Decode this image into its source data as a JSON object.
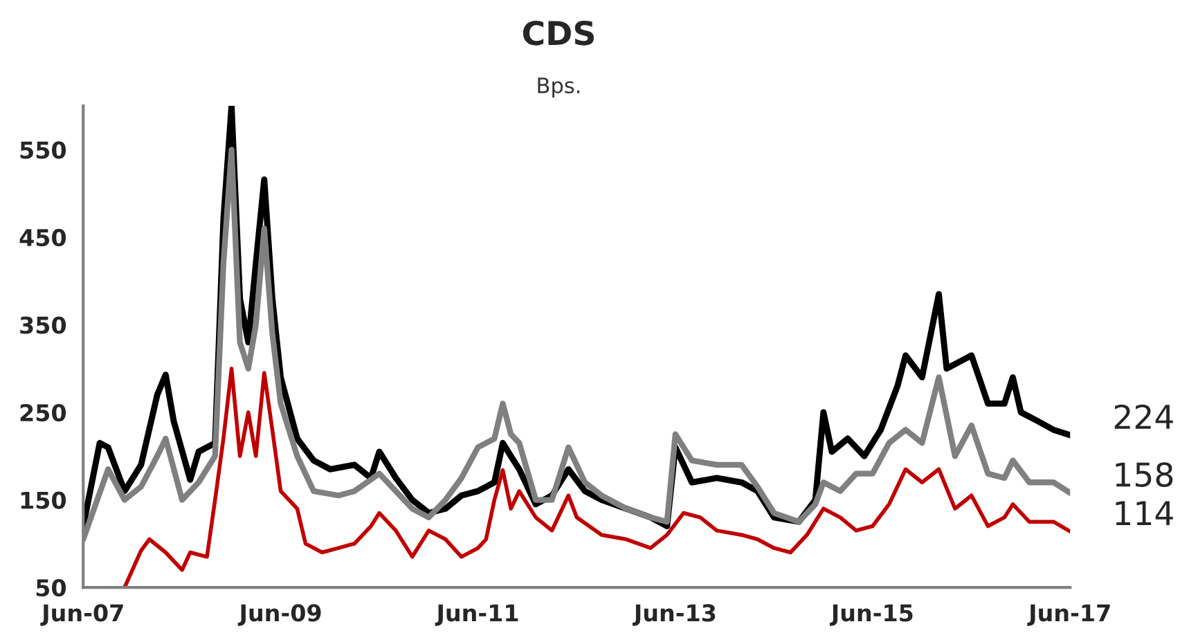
{
  "chart_data": {
    "type": "line",
    "title": "CDS",
    "subtitle": "Bps.",
    "xlim": [
      "2007-06",
      "2017-06"
    ],
    "xticks": [
      {
        "value": "2007-06",
        "label": "Jun-07"
      },
      {
        "value": "2009-06",
        "label": "Jun-09"
      },
      {
        "value": "2011-06",
        "label": "Jun-11"
      },
      {
        "value": "2013-06",
        "label": "Jun-13"
      },
      {
        "value": "2015-06",
        "label": "Jun-15"
      },
      {
        "value": "2017-06",
        "label": "Jun-17"
      }
    ],
    "ylim": [
      50,
      600
    ],
    "yticks": [
      50,
      150,
      250,
      350,
      450,
      550
    ],
    "grid": false,
    "legend": false,
    "marker": "none",
    "line_style": "solid",
    "series": [
      {
        "color": "#000000",
        "x": [
          "2007-06",
          "2007-08",
          "2007-09",
          "2007-11",
          "2008-01",
          "2008-03",
          "2008-04",
          "2008-05",
          "2008-07",
          "2008-08",
          "2008-10",
          "2008-11",
          "2008-12",
          "2009-01",
          "2009-02",
          "2009-03",
          "2009-04",
          "2009-05",
          "2009-06",
          "2009-08",
          "2009-10",
          "2009-12",
          "2010-03",
          "2010-05",
          "2010-06",
          "2010-08",
          "2010-10",
          "2010-12",
          "2011-02",
          "2011-04",
          "2011-06",
          "2011-08",
          "2011-09",
          "2011-10",
          "2011-11",
          "2012-01",
          "2012-03",
          "2012-05",
          "2012-07",
          "2012-09",
          "2012-12",
          "2013-03",
          "2013-05",
          "2013-06",
          "2013-08",
          "2013-11",
          "2014-02",
          "2014-04",
          "2014-06",
          "2014-09",
          "2014-11",
          "2014-12",
          "2015-01",
          "2015-03",
          "2015-05",
          "2015-07",
          "2015-09",
          "2015-10",
          "2015-12",
          "2016-02",
          "2016-03",
          "2016-05",
          "2016-06",
          "2016-08",
          "2016-10",
          "2016-11",
          "2016-12",
          "2017-02",
          "2017-04",
          "2017-06"
        ],
        "values": [
          120,
          215,
          210,
          160,
          190,
          270,
          293,
          240,
          173,
          205,
          215,
          470,
          600,
          380,
          330,
          420,
          516,
          380,
          290,
          220,
          195,
          185,
          190,
          175,
          205,
          175,
          150,
          135,
          140,
          155,
          160,
          170,
          215,
          200,
          185,
          145,
          155,
          185,
          160,
          150,
          140,
          130,
          120,
          210,
          170,
          175,
          170,
          160,
          130,
          125,
          150,
          250,
          205,
          220,
          200,
          230,
          280,
          315,
          290,
          385,
          300,
          310,
          315,
          260,
          260,
          290,
          250,
          240,
          230,
          224
        ]
      },
      {
        "color": "#808080",
        "x": [
          "2007-06",
          "2007-09",
          "2007-11",
          "2008-01",
          "2008-03",
          "2008-04",
          "2008-06",
          "2008-08",
          "2008-10",
          "2008-11",
          "2008-12",
          "2009-01",
          "2009-02",
          "2009-03",
          "2009-04",
          "2009-05",
          "2009-06",
          "2009-08",
          "2009-10",
          "2010-01",
          "2010-03",
          "2010-06",
          "2010-08",
          "2010-10",
          "2010-12",
          "2011-02",
          "2011-04",
          "2011-06",
          "2011-08",
          "2011-09",
          "2011-10",
          "2011-11",
          "2012-01",
          "2012-03",
          "2012-05",
          "2012-07",
          "2012-09",
          "2012-12",
          "2013-03",
          "2013-05",
          "2013-06",
          "2013-08",
          "2013-11",
          "2014-02",
          "2014-04",
          "2014-06",
          "2014-09",
          "2014-11",
          "2014-12",
          "2015-02",
          "2015-04",
          "2015-06",
          "2015-08",
          "2015-10",
          "2015-12",
          "2016-02",
          "2016-04",
          "2016-06",
          "2016-08",
          "2016-10",
          "2016-11",
          "2017-01",
          "2017-04",
          "2017-06"
        ],
        "values": [
          105,
          185,
          150,
          165,
          200,
          220,
          150,
          170,
          200,
          420,
          550,
          330,
          300,
          350,
          460,
          340,
          260,
          200,
          160,
          155,
          160,
          180,
          160,
          140,
          130,
          150,
          175,
          210,
          220,
          260,
          225,
          215,
          150,
          150,
          210,
          170,
          155,
          140,
          130,
          125,
          225,
          195,
          190,
          190,
          165,
          135,
          125,
          145,
          170,
          160,
          180,
          180,
          215,
          230,
          215,
          290,
          200,
          235,
          180,
          175,
          195,
          170,
          170,
          158
        ]
      },
      {
        "color": "#c00000",
        "x": [
          "2007-11",
          "2008-01",
          "2008-02",
          "2008-04",
          "2008-06",
          "2008-07",
          "2008-09",
          "2008-10",
          "2008-11",
          "2008-12",
          "2009-01",
          "2009-02",
          "2009-03",
          "2009-04",
          "2009-05",
          "2009-06",
          "2009-08",
          "2009-09",
          "2009-11",
          "2010-01",
          "2010-03",
          "2010-05",
          "2010-06",
          "2010-08",
          "2010-10",
          "2010-12",
          "2011-02",
          "2011-04",
          "2011-06",
          "2011-07",
          "2011-08",
          "2011-09",
          "2011-10",
          "2011-11",
          "2012-01",
          "2012-03",
          "2012-05",
          "2012-06",
          "2012-09",
          "2012-12",
          "2013-03",
          "2013-05",
          "2013-07",
          "2013-09",
          "2013-11",
          "2014-02",
          "2014-04",
          "2014-06",
          "2014-08",
          "2014-10",
          "2014-12",
          "2015-02",
          "2015-04",
          "2015-06",
          "2015-08",
          "2015-10",
          "2015-12",
          "2016-02",
          "2016-04",
          "2016-06",
          "2016-08",
          "2016-10",
          "2016-11",
          "2017-01",
          "2017-04",
          "2017-06"
        ],
        "values": [
          50,
          92,
          105,
          90,
          70,
          90,
          85,
          150,
          220,
          300,
          200,
          250,
          200,
          295,
          230,
          160,
          140,
          100,
          90,
          95,
          100,
          120,
          135,
          115,
          85,
          115,
          105,
          85,
          95,
          105,
          150,
          184,
          140,
          160,
          130,
          115,
          155,
          130,
          110,
          105,
          95,
          110,
          135,
          130,
          115,
          110,
          105,
          95,
          90,
          110,
          140,
          130,
          115,
          120,
          145,
          185,
          170,
          185,
          140,
          155,
          120,
          130,
          145,
          125,
          125,
          114
        ]
      }
    ],
    "annotations": [
      {
        "text": "224",
        "x": "2017-06",
        "y": 224
      },
      {
        "text": "158",
        "x": "2017-06",
        "y": 158
      },
      {
        "text": "114",
        "x": "2017-06",
        "y": 114
      }
    ]
  }
}
